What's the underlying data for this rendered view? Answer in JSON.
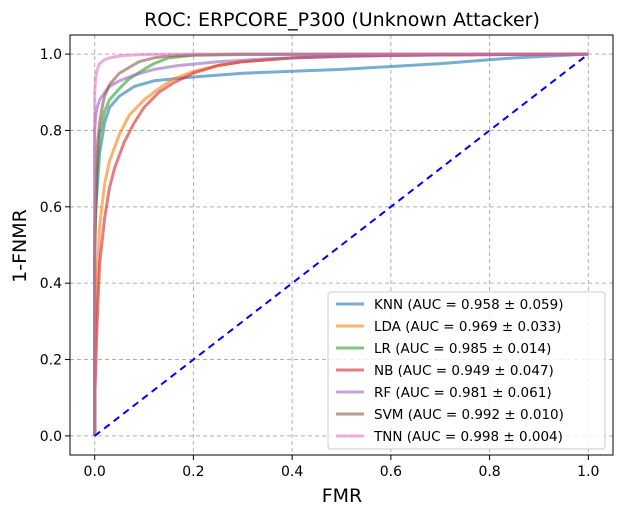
{
  "chart_data": {
    "type": "line",
    "title": "ROC: ERPCORE_P300 (Unknown Attacker)",
    "xlabel": "FMR",
    "ylabel": "1-FNMR",
    "xlim": [
      -0.05,
      1.05
    ],
    "ylim": [
      -0.05,
      1.05
    ],
    "xticks": [
      0.0,
      0.2,
      0.4,
      0.6,
      0.8,
      1.0
    ],
    "yticks": [
      0.0,
      0.2,
      0.4,
      0.6,
      0.8,
      1.0
    ],
    "xtick_labels": [
      "0.0",
      "0.2",
      "0.4",
      "0.6",
      "0.8",
      "1.0"
    ],
    "ytick_labels": [
      "0.0",
      "0.2",
      "0.4",
      "0.6",
      "0.8",
      "1.0"
    ],
    "grid": true,
    "legend_position": "lower-right",
    "series": [
      {
        "name": "KNN (AUC = 0.958 ± 0.059)",
        "color": "#1f77b4",
        "x": [
          0,
          0.0,
          0.005,
          0.01,
          0.02,
          0.03,
          0.05,
          0.08,
          0.12,
          0.2,
          0.3,
          0.5,
          0.7,
          0.85,
          1.0
        ],
        "y": [
          0,
          0.55,
          0.65,
          0.74,
          0.82,
          0.86,
          0.89,
          0.915,
          0.93,
          0.94,
          0.95,
          0.96,
          0.975,
          0.99,
          1.0
        ]
      },
      {
        "name": "LDA (AUC = 0.969 ± 0.033)",
        "color": "#ff7f0e",
        "x": [
          0,
          0.0,
          0.005,
          0.01,
          0.02,
          0.03,
          0.05,
          0.07,
          0.1,
          0.13,
          0.16,
          0.2,
          0.25,
          0.3,
          0.4,
          0.6,
          1.0
        ],
        "y": [
          0,
          0.2,
          0.4,
          0.55,
          0.66,
          0.72,
          0.79,
          0.84,
          0.88,
          0.91,
          0.935,
          0.955,
          0.97,
          0.98,
          0.99,
          0.997,
          1.0
        ]
      },
      {
        "name": "LR (AUC = 0.985 ± 0.014)",
        "color": "#2ca02c",
        "x": [
          0,
          0.0,
          0.005,
          0.01,
          0.02,
          0.03,
          0.05,
          0.07,
          0.1,
          0.12,
          0.15,
          0.2,
          0.3,
          1.0
        ],
        "y": [
          0,
          0.5,
          0.7,
          0.79,
          0.85,
          0.88,
          0.91,
          0.935,
          0.96,
          0.975,
          0.99,
          0.997,
          0.999,
          1.0
        ]
      },
      {
        "name": "NB (AUC = 0.949 ± 0.047)",
        "color": "#d62728",
        "x": [
          0,
          0.0,
          0.005,
          0.01,
          0.02,
          0.03,
          0.04,
          0.06,
          0.08,
          0.1,
          0.13,
          0.16,
          0.2,
          0.25,
          0.3,
          0.4,
          0.5,
          0.7,
          1.0
        ],
        "y": [
          0,
          0.1,
          0.3,
          0.45,
          0.57,
          0.65,
          0.7,
          0.77,
          0.82,
          0.86,
          0.9,
          0.925,
          0.95,
          0.97,
          0.98,
          0.99,
          0.995,
          0.998,
          1.0
        ]
      },
      {
        "name": "RF (AUC = 0.981 ± 0.061)",
        "color": "#9467bd",
        "x": [
          0,
          0.0,
          0.002,
          0.005,
          0.01,
          0.02,
          0.03,
          0.05,
          0.08,
          0.12,
          0.17,
          0.25,
          0.35,
          0.5,
          0.7,
          1.0
        ],
        "y": [
          0,
          0.8,
          0.84,
          0.86,
          0.88,
          0.9,
          0.915,
          0.93,
          0.945,
          0.96,
          0.97,
          0.98,
          0.988,
          0.994,
          0.998,
          1.0
        ]
      },
      {
        "name": "SVM (AUC = 0.992 ± 0.010)",
        "color": "#8c564b",
        "x": [
          0,
          0.0,
          0.002,
          0.005,
          0.01,
          0.015,
          0.02,
          0.03,
          0.05,
          0.07,
          0.09,
          0.12,
          0.15,
          0.2,
          0.3,
          1.0
        ],
        "y": [
          0,
          0.45,
          0.6,
          0.75,
          0.82,
          0.86,
          0.89,
          0.92,
          0.95,
          0.965,
          0.98,
          0.99,
          0.995,
          0.998,
          1.0,
          1.0
        ]
      },
      {
        "name": "TNN (AUC = 0.998 ± 0.004)",
        "color": "#e377c2",
        "x": [
          0,
          0.0,
          0.002,
          0.005,
          0.01,
          0.02,
          0.03,
          0.05,
          0.07,
          0.1,
          0.15,
          0.2,
          1.0
        ],
        "y": [
          0,
          0.9,
          0.94,
          0.96,
          0.975,
          0.985,
          0.99,
          0.995,
          0.997,
          0.999,
          1.0,
          1.0,
          1.0
        ]
      }
    ],
    "reference_line": {
      "x": [
        0,
        1
      ],
      "y": [
        0,
        1
      ],
      "color": "#0000ff",
      "style": "dashed"
    }
  }
}
